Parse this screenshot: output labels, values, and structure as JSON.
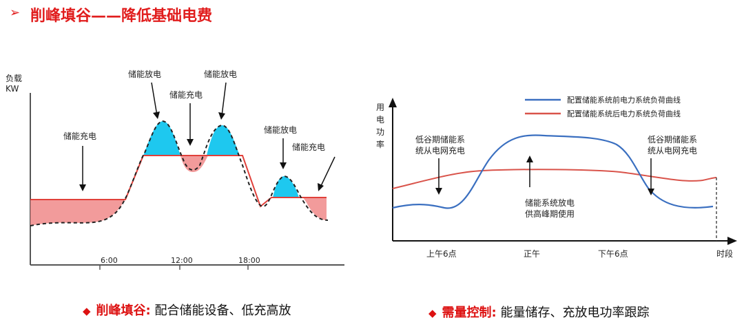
{
  "title": {
    "text": "削峰填谷——降低基础电费",
    "arrow": "➢"
  },
  "left_chart": {
    "y_unit_1": "负载",
    "y_unit_2": "KW",
    "x_ticks": [
      "6:00",
      "12:00",
      "18:00"
    ],
    "labels": {
      "charge_1": "储能充电",
      "discharge_1": "储能放电",
      "charge_2": "储能充电",
      "discharge_2": "储能放电",
      "discharge_3": "储能放电",
      "charge_3": "储能充电"
    },
    "colors": {
      "peak": "#1ec8ef",
      "valley": "#f08a8a",
      "line": "#e0403a"
    }
  },
  "right_chart": {
    "y_label_chars": [
      "用",
      "电",
      "功",
      "率"
    ],
    "x_ticks": [
      "上午6点",
      "正午",
      "下午6点"
    ],
    "x_end": "时段",
    "legend": [
      {
        "name": "配置储能系统前电力系统负荷曲线",
        "color": "#3a6fc0"
      },
      {
        "name": "配置储能系统后电力系统负荷曲线",
        "color": "#d9534a"
      }
    ],
    "annotations": {
      "left_1": "低谷期储能系",
      "left_2": "统从电网充电",
      "right_1": "低谷期储能系",
      "right_2": "统从电网充电",
      "center_1": "储能系统放电",
      "center_2": "供高峰期使用"
    }
  },
  "captions": {
    "left_key": "削峰填谷:",
    "left_text": "配合储能设备、低充高放",
    "right_key": "需量控制:",
    "right_text": "能量储存、充放电功率跟踪",
    "diamond": "◆"
  }
}
